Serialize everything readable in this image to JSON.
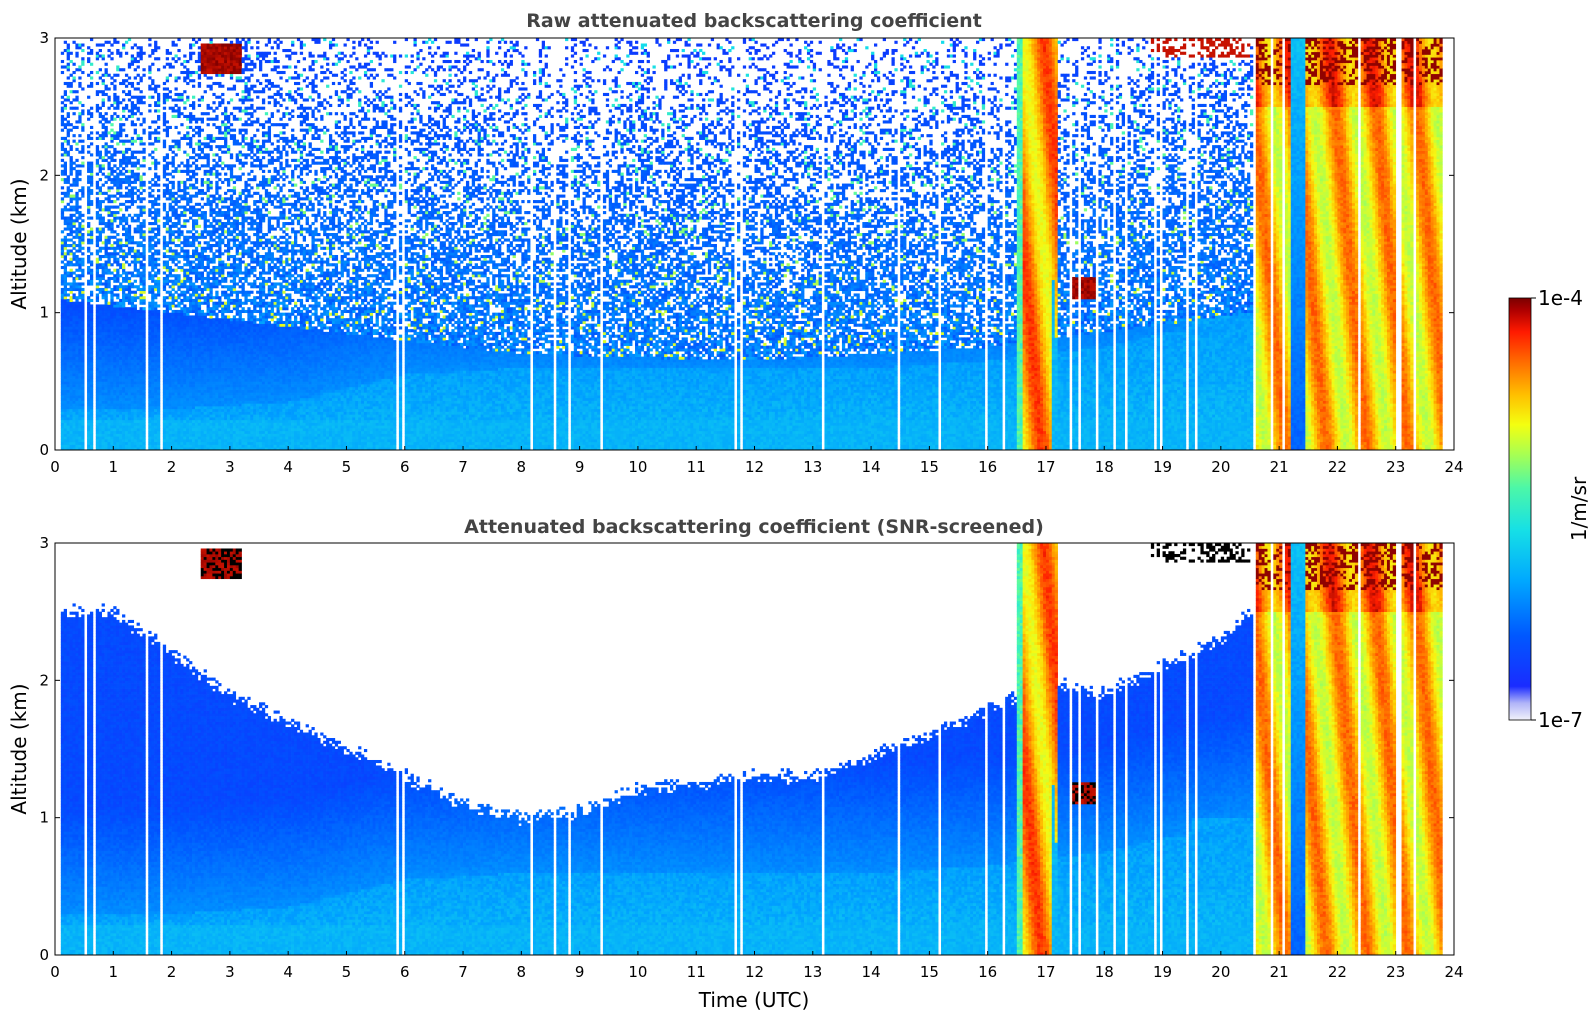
{
  "chart_data": [
    {
      "type": "heatmap",
      "title": "Raw attenuated backscattering coefficient",
      "xlabel": "",
      "ylabel": "Altitude (km)",
      "xlim": [
        0,
        24
      ],
      "ylim": [
        0,
        3
      ],
      "xticks": [
        "0",
        "1",
        "2",
        "3",
        "4",
        "5",
        "6",
        "7",
        "8",
        "9",
        "10",
        "11",
        "12",
        "13",
        "14",
        "15",
        "16",
        "17",
        "18",
        "19",
        "20",
        "21",
        "22",
        "23",
        "24"
      ],
      "yticks": [
        "0",
        "1",
        "2",
        "3"
      ],
      "screened": false,
      "features": [
        {
          "kind": "noise-floor-top",
          "time": [
            0,
            4,
            8,
            12,
            16,
            20.5
          ],
          "altitude_km": [
            1.1,
            0.9,
            0.7,
            0.65,
            0.75,
            1.0
          ]
        },
        {
          "kind": "boundary-layer",
          "time": [
            0,
            2,
            4,
            6,
            8,
            10,
            12,
            14,
            16,
            18,
            20.5
          ],
          "altitude_km": [
            0.3,
            0.3,
            0.35,
            0.55,
            0.6,
            0.6,
            0.6,
            0.6,
            0.65,
            0.75,
            1.0
          ]
        },
        {
          "kind": "cloud",
          "time_start": 2.5,
          "time_end": 3.2,
          "altitude_km": [
            2.75,
            2.95
          ]
        },
        {
          "kind": "cloud",
          "time_start": 17.4,
          "time_end": 17.9,
          "altitude_km": [
            1.1,
            1.25
          ]
        },
        {
          "kind": "precipitation",
          "time_start": 16.5,
          "time_end": 17.2
        },
        {
          "kind": "precipitation",
          "time_start": 20.6,
          "time_end": 23.9
        }
      ]
    },
    {
      "type": "heatmap",
      "title": "Attenuated backscattering coefficient (SNR-screened)",
      "xlabel": "Time (UTC)",
      "ylabel": "Altitude (km)",
      "xlim": [
        0,
        24
      ],
      "ylim": [
        0,
        3
      ],
      "xticks": [
        "0",
        "1",
        "2",
        "3",
        "4",
        "5",
        "6",
        "7",
        "8",
        "9",
        "10",
        "11",
        "12",
        "13",
        "14",
        "15",
        "16",
        "17",
        "18",
        "19",
        "20",
        "21",
        "22",
        "23",
        "24"
      ],
      "yticks": [
        "0",
        "1",
        "2",
        "3"
      ],
      "screened": true,
      "features": [
        {
          "kind": "screen-boundary",
          "time": [
            0,
            1,
            2,
            3,
            4,
            5,
            6,
            7,
            8,
            9,
            10,
            11,
            12,
            13,
            14,
            15,
            16,
            17,
            18,
            19,
            20,
            20.5
          ],
          "altitude_km": [
            2.5,
            2.5,
            2.2,
            1.9,
            1.7,
            1.5,
            1.3,
            1.1,
            1.0,
            1.05,
            1.2,
            1.25,
            1.3,
            1.3,
            1.45,
            1.6,
            1.8,
            2.0,
            1.9,
            2.1,
            2.3,
            2.5
          ]
        },
        {
          "kind": "cloud",
          "time_start": 2.5,
          "time_end": 3.2,
          "altitude_km": [
            2.75,
            2.95
          ]
        },
        {
          "kind": "cloud",
          "time_start": 17.4,
          "time_end": 17.9,
          "altitude_km": [
            1.1,
            1.25
          ]
        },
        {
          "kind": "precipitation",
          "time_start": 16.5,
          "time_end": 17.2
        },
        {
          "kind": "precipitation",
          "time_start": 20.6,
          "time_end": 23.9
        }
      ]
    }
  ],
  "colorbar": {
    "unit_label": "1/m/sr",
    "max_label": "1e-4",
    "min_label": "1e-7",
    "colormap": "jet",
    "colors": [
      "#f2f2fb",
      "#1a2cff",
      "#0058ff",
      "#00a8ff",
      "#16e0e6",
      "#4cf7a8",
      "#a8ff52",
      "#f4ff10",
      "#ffc000",
      "#ff6a00",
      "#ff1a00",
      "#b00000",
      "#7a0000"
    ]
  }
}
